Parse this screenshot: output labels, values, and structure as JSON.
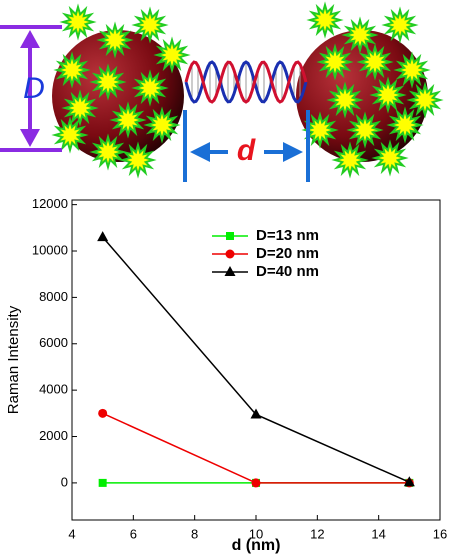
{
  "illustration": {
    "big_label": "D",
    "small_label": "d"
  },
  "chart_data": {
    "type": "line",
    "x": [
      5,
      10,
      15
    ],
    "series": [
      {
        "name": "D=13 nm",
        "color": "#00ee00",
        "marker": "square",
        "values": [
          0,
          0,
          0
        ]
      },
      {
        "name": "D=20 nm",
        "color": "#ee0000",
        "marker": "circle",
        "values": [
          3000,
          0,
          0
        ]
      },
      {
        "name": "D=40 nm",
        "color": "#000000",
        "marker": "triangle",
        "values": [
          10600,
          2950,
          30
        ]
      }
    ],
    "xlabel": "d (nm)",
    "ylabel": "Raman Intensity",
    "xlim": [
      4,
      16
    ],
    "xticks": [
      4,
      6,
      8,
      10,
      12,
      14,
      16
    ],
    "ylim": [
      -1600,
      12200
    ],
    "yticks": [
      0,
      2000,
      4000,
      6000,
      8000,
      10000,
      12000
    ],
    "legend": "top-center"
  }
}
